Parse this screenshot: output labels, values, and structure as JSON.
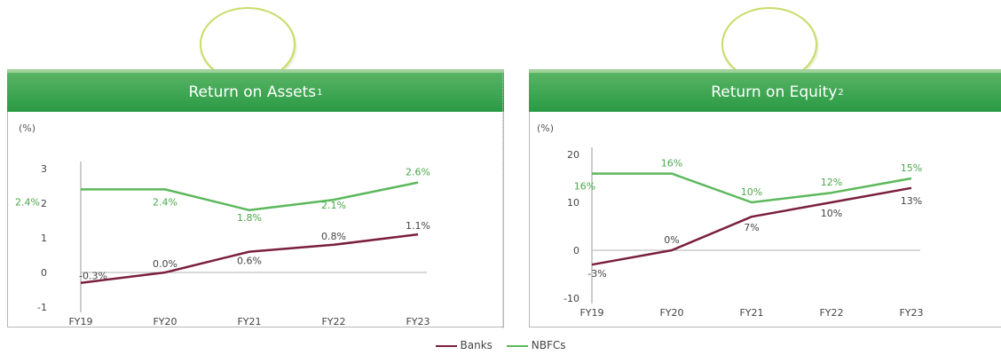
{
  "colors": {
    "banks": "#7a1f3d",
    "nbfcs": "#5cb85c",
    "header": "#2a9a45"
  },
  "legend": {
    "banks": "Banks",
    "nbfcs": "NBFCs"
  },
  "chart_data": [
    {
      "type": "line",
      "title": "Return on Assets",
      "title_sup": "1",
      "unit_label": "(%)",
      "categories": [
        "FY19",
        "FY20",
        "FY21",
        "FY22",
        "FY23"
      ],
      "ylim": [
        -1,
        3
      ],
      "yticks": [
        "-1",
        "0",
        "1",
        "2",
        "3"
      ],
      "series": [
        {
          "name": "Banks",
          "values": [
            -0.3,
            0.0,
            0.6,
            0.8,
            1.1
          ],
          "labels": [
            "-0.3%",
            "0.0%",
            "0.6%",
            "0.8%",
            "1.1%"
          ]
        },
        {
          "name": "NBFCs",
          "values": [
            2.4,
            2.4,
            1.8,
            2.1,
            2.6
          ],
          "labels": [
            "2.4%",
            "2.4%",
            "1.8%",
            "2.1%",
            "2.6%"
          ]
        }
      ]
    },
    {
      "type": "line",
      "title": "Return on Equity",
      "title_sup": "2",
      "unit_label": "(%)",
      "categories": [
        "FY19",
        "FY20",
        "FY21",
        "FY22",
        "FY23"
      ],
      "ylim": [
        -10,
        20
      ],
      "yticks": [
        "-10",
        "0",
        "10",
        "20"
      ],
      "series": [
        {
          "name": "Banks",
          "values": [
            -3,
            0,
            7,
            10,
            13
          ],
          "labels": [
            "-3%",
            "0%",
            "7%",
            "10%",
            "13%"
          ]
        },
        {
          "name": "NBFCs",
          "values": [
            16,
            16,
            10,
            12,
            15
          ],
          "labels": [
            "16%",
            "16%",
            "10%",
            "12%",
            "15%"
          ]
        }
      ]
    }
  ]
}
